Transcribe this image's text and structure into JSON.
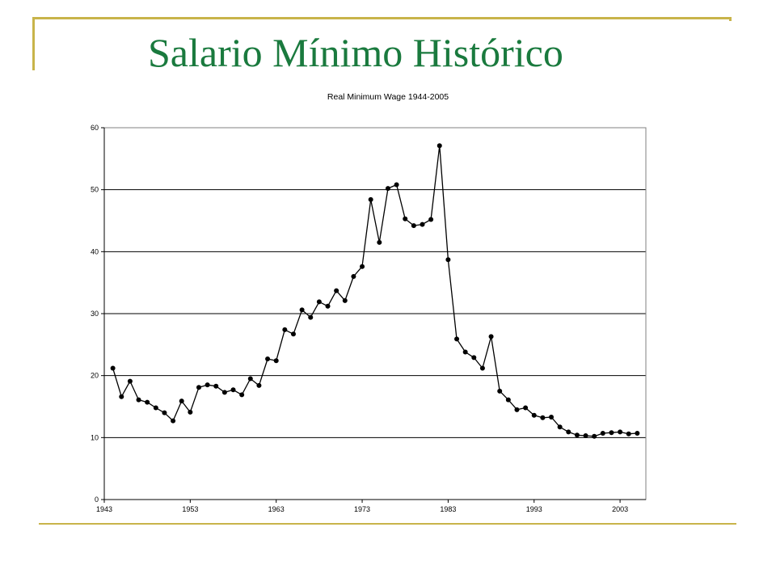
{
  "slide": {
    "title": "Salario Mínimo Histórico",
    "accent_color": "#c8b44a",
    "title_color": "#1a7a3e"
  },
  "chart_data": {
    "type": "line",
    "title": "Real Minimum Wage 1944-2005",
    "xlabel": "",
    "ylabel": "",
    "xlim": [
      1943,
      2006
    ],
    "ylim": [
      0,
      60
    ],
    "x_ticks": [
      1943,
      1953,
      1963,
      1973,
      1983,
      1993,
      2003
    ],
    "y_ticks": [
      0,
      10,
      20,
      30,
      40,
      50,
      60
    ],
    "grid": "horizontal",
    "legend": "none",
    "marker": "circle",
    "line_color": "#000000",
    "series": [
      {
        "x": [
          1944,
          1945,
          1946,
          1947,
          1948,
          1949,
          1950,
          1951,
          1952,
          1953,
          1954,
          1955,
          1956,
          1957,
          1958,
          1959,
          1960,
          1961,
          1962,
          1963,
          1964,
          1965,
          1966,
          1967,
          1968,
          1969,
          1970,
          1971,
          1972,
          1973,
          1974,
          1975,
          1976,
          1977,
          1978,
          1979,
          1980,
          1981,
          1982,
          1983,
          1984,
          1985,
          1986,
          1987,
          1988,
          1989,
          1990,
          1991,
          1992,
          1993,
          1994,
          1995,
          1996,
          1997,
          1998,
          1999,
          2000,
          2001,
          2002,
          2003,
          2004,
          2005
        ],
        "values": [
          21.2,
          16.6,
          19.1,
          16.1,
          15.7,
          14.8,
          14.0,
          12.7,
          15.9,
          14.1,
          18.1,
          18.5,
          18.3,
          17.3,
          17.7,
          16.9,
          19.5,
          18.4,
          22.7,
          22.4,
          27.4,
          26.7,
          30.6,
          29.4,
          31.9,
          31.2,
          33.7,
          32.1,
          36.0,
          37.6,
          48.4,
          41.5,
          50.2,
          50.8,
          45.3,
          44.2,
          44.4,
          45.2,
          57.1,
          38.7,
          25.9,
          23.8,
          22.9,
          21.2,
          26.3,
          17.5,
          16.1,
          14.5,
          14.8,
          13.6,
          13.2,
          13.3,
          11.7,
          10.9,
          10.4,
          10.3,
          10.2,
          10.7,
          10.8,
          10.9,
          10.6,
          10.7
        ]
      }
    ]
  }
}
